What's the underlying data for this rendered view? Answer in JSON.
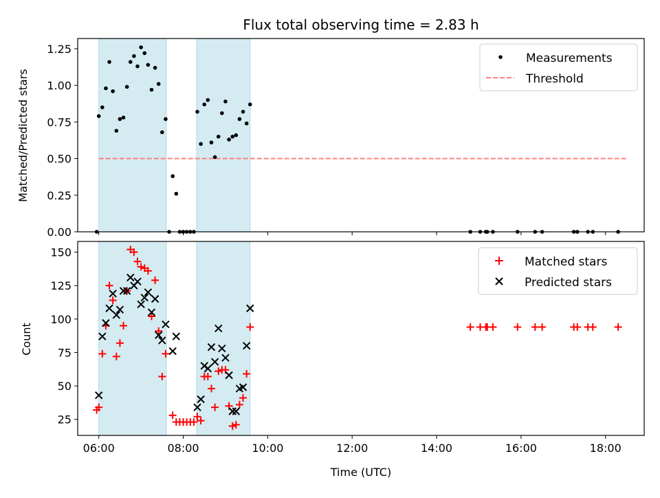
{
  "figure": {
    "title": "Flux total observing time = 2.83 h",
    "xlabel": "Time (UTC)",
    "colors": {
      "shade": "#add8e6",
      "measurement": "#000000",
      "threshold": "#ff7f7f",
      "matched": "#ff0000",
      "predicted": "#000000"
    }
  },
  "chart_data": [
    {
      "type": "scatter",
      "panel": "top",
      "ylabel": "Matched/Predicted stars",
      "xlim": [
        "05:30",
        "18:55"
      ],
      "ylim": [
        0,
        1.32
      ],
      "yticks": [
        "0.00",
        "0.25",
        "0.50",
        "0.75",
        "1.00",
        "1.25"
      ],
      "xticks": [
        "06:00",
        "08:00",
        "10:00",
        "12:00",
        "14:00",
        "16:00",
        "18:00"
      ],
      "shaded_intervals": [
        [
          "06:00",
          "07:36"
        ],
        [
          "08:19",
          "09:35"
        ]
      ],
      "legend": {
        "position": "top-right",
        "entries": [
          "Measurements",
          "Threshold"
        ]
      },
      "threshold": {
        "name": "Threshold",
        "y": 0.5,
        "x_range": [
          "06:00",
          "18:30"
        ]
      },
      "series": [
        {
          "name": "Measurements",
          "points": [
            [
              "05:57",
              0.0
            ],
            [
              "06:00",
              0.79
            ],
            [
              "06:05",
              0.85
            ],
            [
              "06:10",
              0.98
            ],
            [
              "06:15",
              1.16
            ],
            [
              "06:20",
              0.96
            ],
            [
              "06:25",
              0.69
            ],
            [
              "06:30",
              0.77
            ],
            [
              "06:35",
              0.78
            ],
            [
              "06:40",
              0.99
            ],
            [
              "06:45",
              1.16
            ],
            [
              "06:50",
              1.2
            ],
            [
              "06:55",
              1.13
            ],
            [
              "07:00",
              1.26
            ],
            [
              "07:05",
              1.22
            ],
            [
              "07:10",
              1.14
            ],
            [
              "07:15",
              0.97
            ],
            [
              "07:20",
              1.12
            ],
            [
              "07:25",
              1.01
            ],
            [
              "07:30",
              0.68
            ],
            [
              "07:35",
              0.77
            ],
            [
              "07:40",
              0.0
            ],
            [
              "07:45",
              0.38
            ],
            [
              "07:50",
              0.26
            ],
            [
              "07:55",
              0.0
            ],
            [
              "08:00",
              0.0
            ],
            [
              "08:05",
              0.0
            ],
            [
              "08:10",
              0.0
            ],
            [
              "08:15",
              0.0
            ],
            [
              "08:20",
              0.82
            ],
            [
              "08:25",
              0.6
            ],
            [
              "08:30",
              0.87
            ],
            [
              "08:35",
              0.9
            ],
            [
              "08:40",
              0.61
            ],
            [
              "08:45",
              0.51
            ],
            [
              "08:50",
              0.65
            ],
            [
              "08:55",
              0.81
            ],
            [
              "09:00",
              0.89
            ],
            [
              "09:05",
              0.63
            ],
            [
              "09:10",
              0.65
            ],
            [
              "09:15",
              0.66
            ],
            [
              "09:20",
              0.77
            ],
            [
              "09:25",
              0.82
            ],
            [
              "09:30",
              0.74
            ],
            [
              "09:35",
              0.87
            ],
            [
              "14:48",
              0.0
            ],
            [
              "15:02",
              0.0
            ],
            [
              "15:10",
              0.0
            ],
            [
              "15:12",
              0.0
            ],
            [
              "15:20",
              0.0
            ],
            [
              "15:55",
              0.0
            ],
            [
              "16:20",
              0.0
            ],
            [
              "16:30",
              0.0
            ],
            [
              "17:15",
              0.0
            ],
            [
              "17:20",
              0.0
            ],
            [
              "17:35",
              0.0
            ],
            [
              "17:42",
              0.0
            ],
            [
              "18:18",
              0.0
            ]
          ]
        }
      ]
    },
    {
      "type": "scatter",
      "panel": "bottom",
      "ylabel": "Count",
      "xlim": [
        "05:30",
        "18:55"
      ],
      "ylim": [
        13,
        158
      ],
      "yticks": [
        "25",
        "50",
        "75",
        "100",
        "125",
        "150"
      ],
      "xticks": [
        "06:00",
        "08:00",
        "10:00",
        "12:00",
        "14:00",
        "16:00",
        "18:00"
      ],
      "shaded_intervals": [
        [
          "06:00",
          "07:36"
        ],
        [
          "08:19",
          "09:35"
        ]
      ],
      "legend": {
        "position": "top-right",
        "entries": [
          "Matched stars",
          "Predicted stars"
        ]
      },
      "series": [
        {
          "name": "Matched stars",
          "marker": "+",
          "points": [
            [
              "05:57",
              32
            ],
            [
              "06:00",
              34
            ],
            [
              "06:05",
              74
            ],
            [
              "06:10",
              95
            ],
            [
              "06:15",
              125
            ],
            [
              "06:20",
              114
            ],
            [
              "06:25",
              72
            ],
            [
              "06:30",
              82
            ],
            [
              "06:35",
              95
            ],
            [
              "06:40",
              121
            ],
            [
              "06:45",
              152
            ],
            [
              "06:50",
              150
            ],
            [
              "06:55",
              143
            ],
            [
              "07:00",
              139
            ],
            [
              "07:05",
              138
            ],
            [
              "07:10",
              136
            ],
            [
              "07:15",
              102
            ],
            [
              "07:20",
              129
            ],
            [
              "07:25",
              91
            ],
            [
              "07:30",
              57
            ],
            [
              "07:35",
              74
            ],
            [
              "07:45",
              28
            ],
            [
              "07:50",
              23
            ],
            [
              "07:55",
              23
            ],
            [
              "08:00",
              23
            ],
            [
              "08:05",
              23
            ],
            [
              "08:10",
              23
            ],
            [
              "08:15",
              23
            ],
            [
              "08:20",
              27
            ],
            [
              "08:25",
              24
            ],
            [
              "08:30",
              57
            ],
            [
              "08:35",
              57
            ],
            [
              "08:40",
              48
            ],
            [
              "08:45",
              34
            ],
            [
              "08:50",
              61
            ],
            [
              "08:55",
              62
            ],
            [
              "09:00",
              62
            ],
            [
              "09:05",
              35
            ],
            [
              "09:10",
              20
            ],
            [
              "09:15",
              21
            ],
            [
              "09:20",
              36
            ],
            [
              "09:25",
              41
            ],
            [
              "09:30",
              59
            ],
            [
              "09:35",
              94
            ],
            [
              "14:48",
              94
            ],
            [
              "15:02",
              94
            ],
            [
              "15:10",
              94
            ],
            [
              "15:12",
              94
            ],
            [
              "15:20",
              94
            ],
            [
              "15:55",
              94
            ],
            [
              "16:20",
              94
            ],
            [
              "16:30",
              94
            ],
            [
              "17:15",
              94
            ],
            [
              "17:20",
              94
            ],
            [
              "17:35",
              94
            ],
            [
              "17:42",
              94
            ],
            [
              "18:18",
              94
            ]
          ]
        },
        {
          "name": "Predicted stars",
          "marker": "x",
          "points": [
            [
              "06:00",
              43
            ],
            [
              "06:05",
              87
            ],
            [
              "06:10",
              97
            ],
            [
              "06:15",
              108
            ],
            [
              "06:20",
              119
            ],
            [
              "06:25",
              103
            ],
            [
              "06:30",
              107
            ],
            [
              "06:35",
              121
            ],
            [
              "06:40",
              121
            ],
            [
              "06:45",
              131
            ],
            [
              "06:50",
              125
            ],
            [
              "06:55",
              128
            ],
            [
              "07:00",
              111
            ],
            [
              "07:05",
              116
            ],
            [
              "07:10",
              120
            ],
            [
              "07:15",
              105
            ],
            [
              "07:20",
              115
            ],
            [
              "07:25",
              88
            ],
            [
              "07:30",
              84
            ],
            [
              "07:35",
              96
            ],
            [
              "07:45",
              76
            ],
            [
              "07:50",
              87
            ],
            [
              "08:20",
              34
            ],
            [
              "08:25",
              40
            ],
            [
              "08:30",
              65
            ],
            [
              "08:35",
              63
            ],
            [
              "08:40",
              79
            ],
            [
              "08:45",
              68
            ],
            [
              "08:50",
              93
            ],
            [
              "08:55",
              78
            ],
            [
              "09:00",
              71
            ],
            [
              "09:05",
              58
            ],
            [
              "09:10",
              31
            ],
            [
              "09:15",
              31
            ],
            [
              "09:20",
              48
            ],
            [
              "09:25",
              49
            ],
            [
              "09:30",
              80
            ],
            [
              "09:35",
              108
            ]
          ]
        }
      ]
    }
  ]
}
